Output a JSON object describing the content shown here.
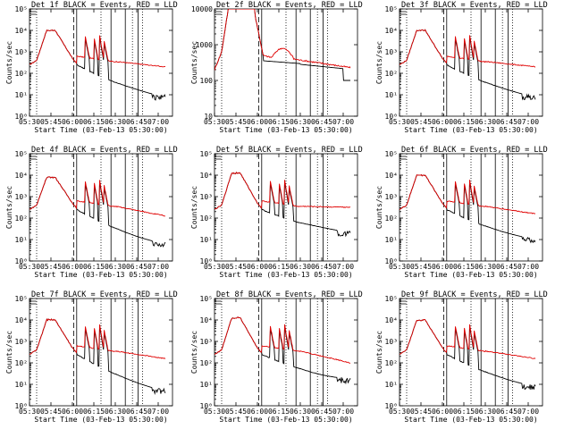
{
  "chart_data": {
    "type": "line",
    "x_tick_labels": [
      "05:30",
      "05:45",
      "06:00",
      "06:15",
      "06:30",
      "06:45",
      "07:00"
    ],
    "x_ticks_min": [
      0,
      15,
      30,
      45,
      60,
      75,
      90
    ],
    "xlim_min": [
      0,
      100
    ],
    "xlabel": "Start Time (03-Feb-13 05:30:00)",
    "ylabel": "Counts/sec",
    "legend_note": "BLACK = Events, RED = LLD",
    "markers": {
      "solid_min": [
        33,
        57,
        67,
        76
      ],
      "dashed_min": [
        31
      ],
      "dotted_min": [
        5,
        50,
        72,
        79
      ]
    },
    "panels": [
      {
        "title": "Det 1f BLACK = Events, RED = LLD",
        "ylog": [
          0,
          5
        ],
        "y_tick_labels": [
          "10⁰",
          "10¹",
          "10²",
          "10³",
          "10⁴",
          "10⁵"
        ],
        "y_ticks": [
          0,
          1,
          2,
          3,
          4,
          5
        ],
        "peak": 4.0,
        "offset": 0.0,
        "evt_tail": 1.4,
        "lld_tail": 2.3
      },
      {
        "title": "Det 2f BLACK = Events, RED = LLD",
        "ylog": [
          1,
          4
        ],
        "y_tick_labels": [
          "10",
          "100",
          "1000",
          "10000"
        ],
        "y_ticks": [
          1,
          2,
          3,
          4
        ],
        "peak": 4.1,
        "offset": 0.0,
        "evt_tail": 2.3,
        "lld_tail": 2.4,
        "flat": true
      },
      {
        "title": "Det 3f BLACK = Events, RED = LLD",
        "ylog": [
          0,
          5
        ],
        "y_tick_labels": [
          "10⁰",
          "10¹",
          "10²",
          "10³",
          "10⁴",
          "10⁵"
        ],
        "y_ticks": [
          0,
          1,
          2,
          3,
          4,
          5
        ],
        "peak": 4.0,
        "offset": 0.0,
        "evt_tail": 1.4,
        "lld_tail": 2.3
      },
      {
        "title": "Det 4f BLACK = Events, RED = LLD",
        "ylog": [
          0,
          5
        ],
        "y_tick_labels": [
          "10⁰",
          "10¹",
          "10²",
          "10³",
          "10⁴",
          "10⁵"
        ],
        "y_ticks": [
          0,
          1,
          2,
          3,
          4,
          5
        ],
        "peak": 3.9,
        "offset": 0.0,
        "evt_tail": 1.3,
        "lld_tail": 2.1
      },
      {
        "title": "Det 5f BLACK = Events, RED = LLD",
        "ylog": [
          0,
          5
        ],
        "y_tick_labels": [
          "10⁰",
          "10¹",
          "10²",
          "10³",
          "10⁴",
          "10⁵"
        ],
        "y_ticks": [
          0,
          1,
          2,
          3,
          4,
          5
        ],
        "peak": 4.1,
        "offset": 0.0,
        "evt_tail": 1.8,
        "lld_tail": 2.5
      },
      {
        "title": "Det 6f BLACK = Events, RED = LLD",
        "ylog": [
          0,
          5
        ],
        "y_tick_labels": [
          "10⁰",
          "10¹",
          "10²",
          "10³",
          "10⁴",
          "10⁵"
        ],
        "y_ticks": [
          0,
          1,
          2,
          3,
          4,
          5
        ],
        "peak": 4.0,
        "offset": 0.0,
        "evt_tail": 1.5,
        "lld_tail": 2.2
      },
      {
        "title": "Det 7f BLACK = Events, RED = LLD",
        "ylog": [
          0,
          5
        ],
        "y_tick_labels": [
          "10⁰",
          "10¹",
          "10²",
          "10³",
          "10⁴",
          "10⁵"
        ],
        "y_ticks": [
          0,
          1,
          2,
          3,
          4,
          5
        ],
        "peak": 4.0,
        "offset": 0.0,
        "evt_tail": 1.2,
        "lld_tail": 2.2
      },
      {
        "title": "Det 8f BLACK = Events, RED = LLD",
        "ylog": [
          0,
          5
        ],
        "y_tick_labels": [
          "10⁰",
          "10¹",
          "10²",
          "10³",
          "10⁴",
          "10⁵"
        ],
        "y_ticks": [
          0,
          1,
          2,
          3,
          4,
          5
        ],
        "peak": 4.1,
        "offset": 0.0,
        "evt_tail": 1.7,
        "lld_tail": 2.0
      },
      {
        "title": "Det 9f BLACK = Events, RED = LLD",
        "ylog": [
          0,
          5
        ],
        "y_tick_labels": [
          "10⁰",
          "10¹",
          "10²",
          "10³",
          "10⁴",
          "10⁵"
        ],
        "y_ticks": [
          0,
          1,
          2,
          3,
          4,
          5
        ],
        "peak": 4.0,
        "offset": 0.0,
        "evt_tail": 1.4,
        "lld_tail": 2.2
      }
    ],
    "series_colors": {
      "events": "#000000",
      "lld": "#e00000"
    }
  }
}
